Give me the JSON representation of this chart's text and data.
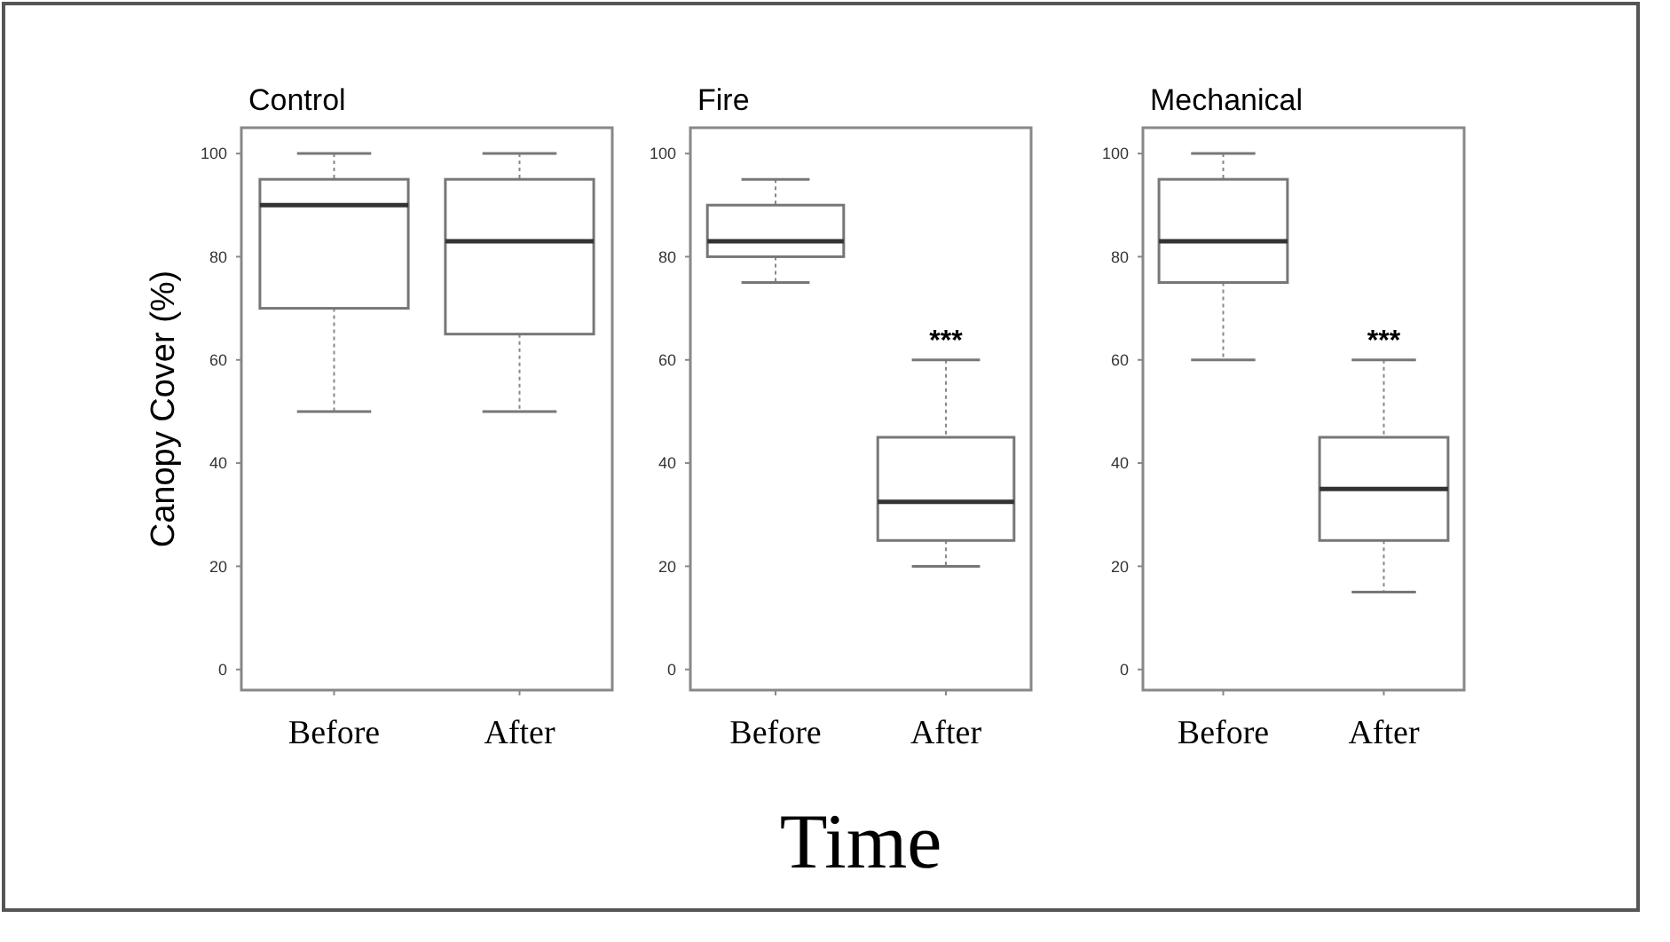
{
  "chart_data": [
    {
      "type": "box",
      "title": "Control",
      "ylabel": "Canopy Cover (%)",
      "categories": [
        "Before",
        "After"
      ],
      "ylim": [
        -4,
        105
      ],
      "yticks": [
        0,
        20,
        40,
        60,
        80,
        100
      ],
      "boxes": [
        {
          "low": 50,
          "q1": 70,
          "median": 90,
          "q3": 95,
          "high": 100
        },
        {
          "low": 50,
          "q1": 65,
          "median": 83,
          "q3": 95,
          "high": 100
        }
      ]
    },
    {
      "type": "box",
      "title": "Fire",
      "xlabel": "Time",
      "categories": [
        "Before",
        "After"
      ],
      "ylim": [
        -4,
        105
      ],
      "yticks": [
        0,
        20,
        40,
        60,
        80,
        100
      ],
      "boxes": [
        {
          "low": 75,
          "q1": 80,
          "median": 83,
          "q3": 90,
          "high": 95
        },
        {
          "low": 20,
          "q1": 25,
          "median": 32.5,
          "q3": 45,
          "high": 60
        }
      ],
      "annotations": [
        {
          "text": "***",
          "x": "After",
          "y": 60
        }
      ]
    },
    {
      "type": "box",
      "title": "Mechanical",
      "categories": [
        "Before",
        "After"
      ],
      "ylim": [
        -4,
        105
      ],
      "yticks": [
        0,
        20,
        40,
        60,
        80,
        100
      ],
      "boxes": [
        {
          "low": 60,
          "q1": 75,
          "median": 83,
          "q3": 95,
          "high": 100
        },
        {
          "low": 15,
          "q1": 25,
          "median": 35,
          "q3": 45,
          "high": 60
        }
      ],
      "annotations": [
        {
          "text": "***",
          "x": "After",
          "y": 60
        }
      ]
    }
  ]
}
